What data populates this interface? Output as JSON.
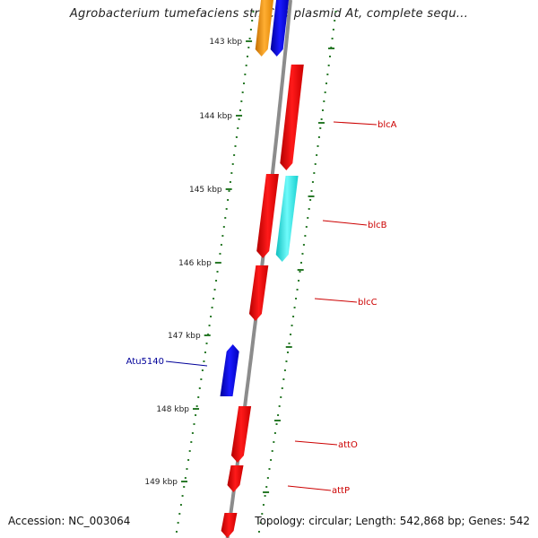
{
  "title": "Agrobacterium tumefaciens str. C58 plasmid At, complete sequ...",
  "accession": "Accession: NC_003064",
  "summary": "Topology: circular; Length: 542,868 bp; Genes: 542",
  "colors": {
    "backbone": "#8c8c8c",
    "ticks": "#2a7a2a",
    "tick_label": "#222222",
    "gene_red": "#ee0000",
    "gene_blue": "#0000dd",
    "gene_cyan": "#22e5e5",
    "gene_orange": "#f39200",
    "label_red": "#cc0000",
    "label_blue": "#000099"
  },
  "kbp_labels": [
    "143 kbp",
    "144 kbp",
    "145 kbp",
    "146 kbp",
    "147 kbp",
    "148 kbp",
    "149 kbp"
  ],
  "gene_labels": [
    {
      "name": "blcA",
      "color": "red"
    },
    {
      "name": "blcB",
      "color": "red"
    },
    {
      "name": "blcC",
      "color": "red"
    },
    {
      "name": "Atu5140",
      "color": "blue"
    },
    {
      "name": "attO",
      "color": "red"
    },
    {
      "name": "attP",
      "color": "red"
    }
  ],
  "genes": [
    {
      "color": "orange",
      "strand": "inner",
      "direction": "down"
    },
    {
      "color": "blue",
      "strand": "inner",
      "direction": "down"
    },
    {
      "color": "red",
      "strand": "outer",
      "direction": "down"
    },
    {
      "color": "red",
      "strand": "outer",
      "direction": "down"
    },
    {
      "color": "cyan",
      "strand": "outer",
      "direction": "down"
    },
    {
      "color": "red",
      "strand": "outer",
      "direction": "down"
    },
    {
      "color": "blue",
      "strand": "inner",
      "direction": "up"
    },
    {
      "color": "red",
      "strand": "outer",
      "direction": "down"
    },
    {
      "color": "red",
      "strand": "outer",
      "direction": "down"
    },
    {
      "color": "red",
      "strand": "outer",
      "direction": "down"
    }
  ]
}
